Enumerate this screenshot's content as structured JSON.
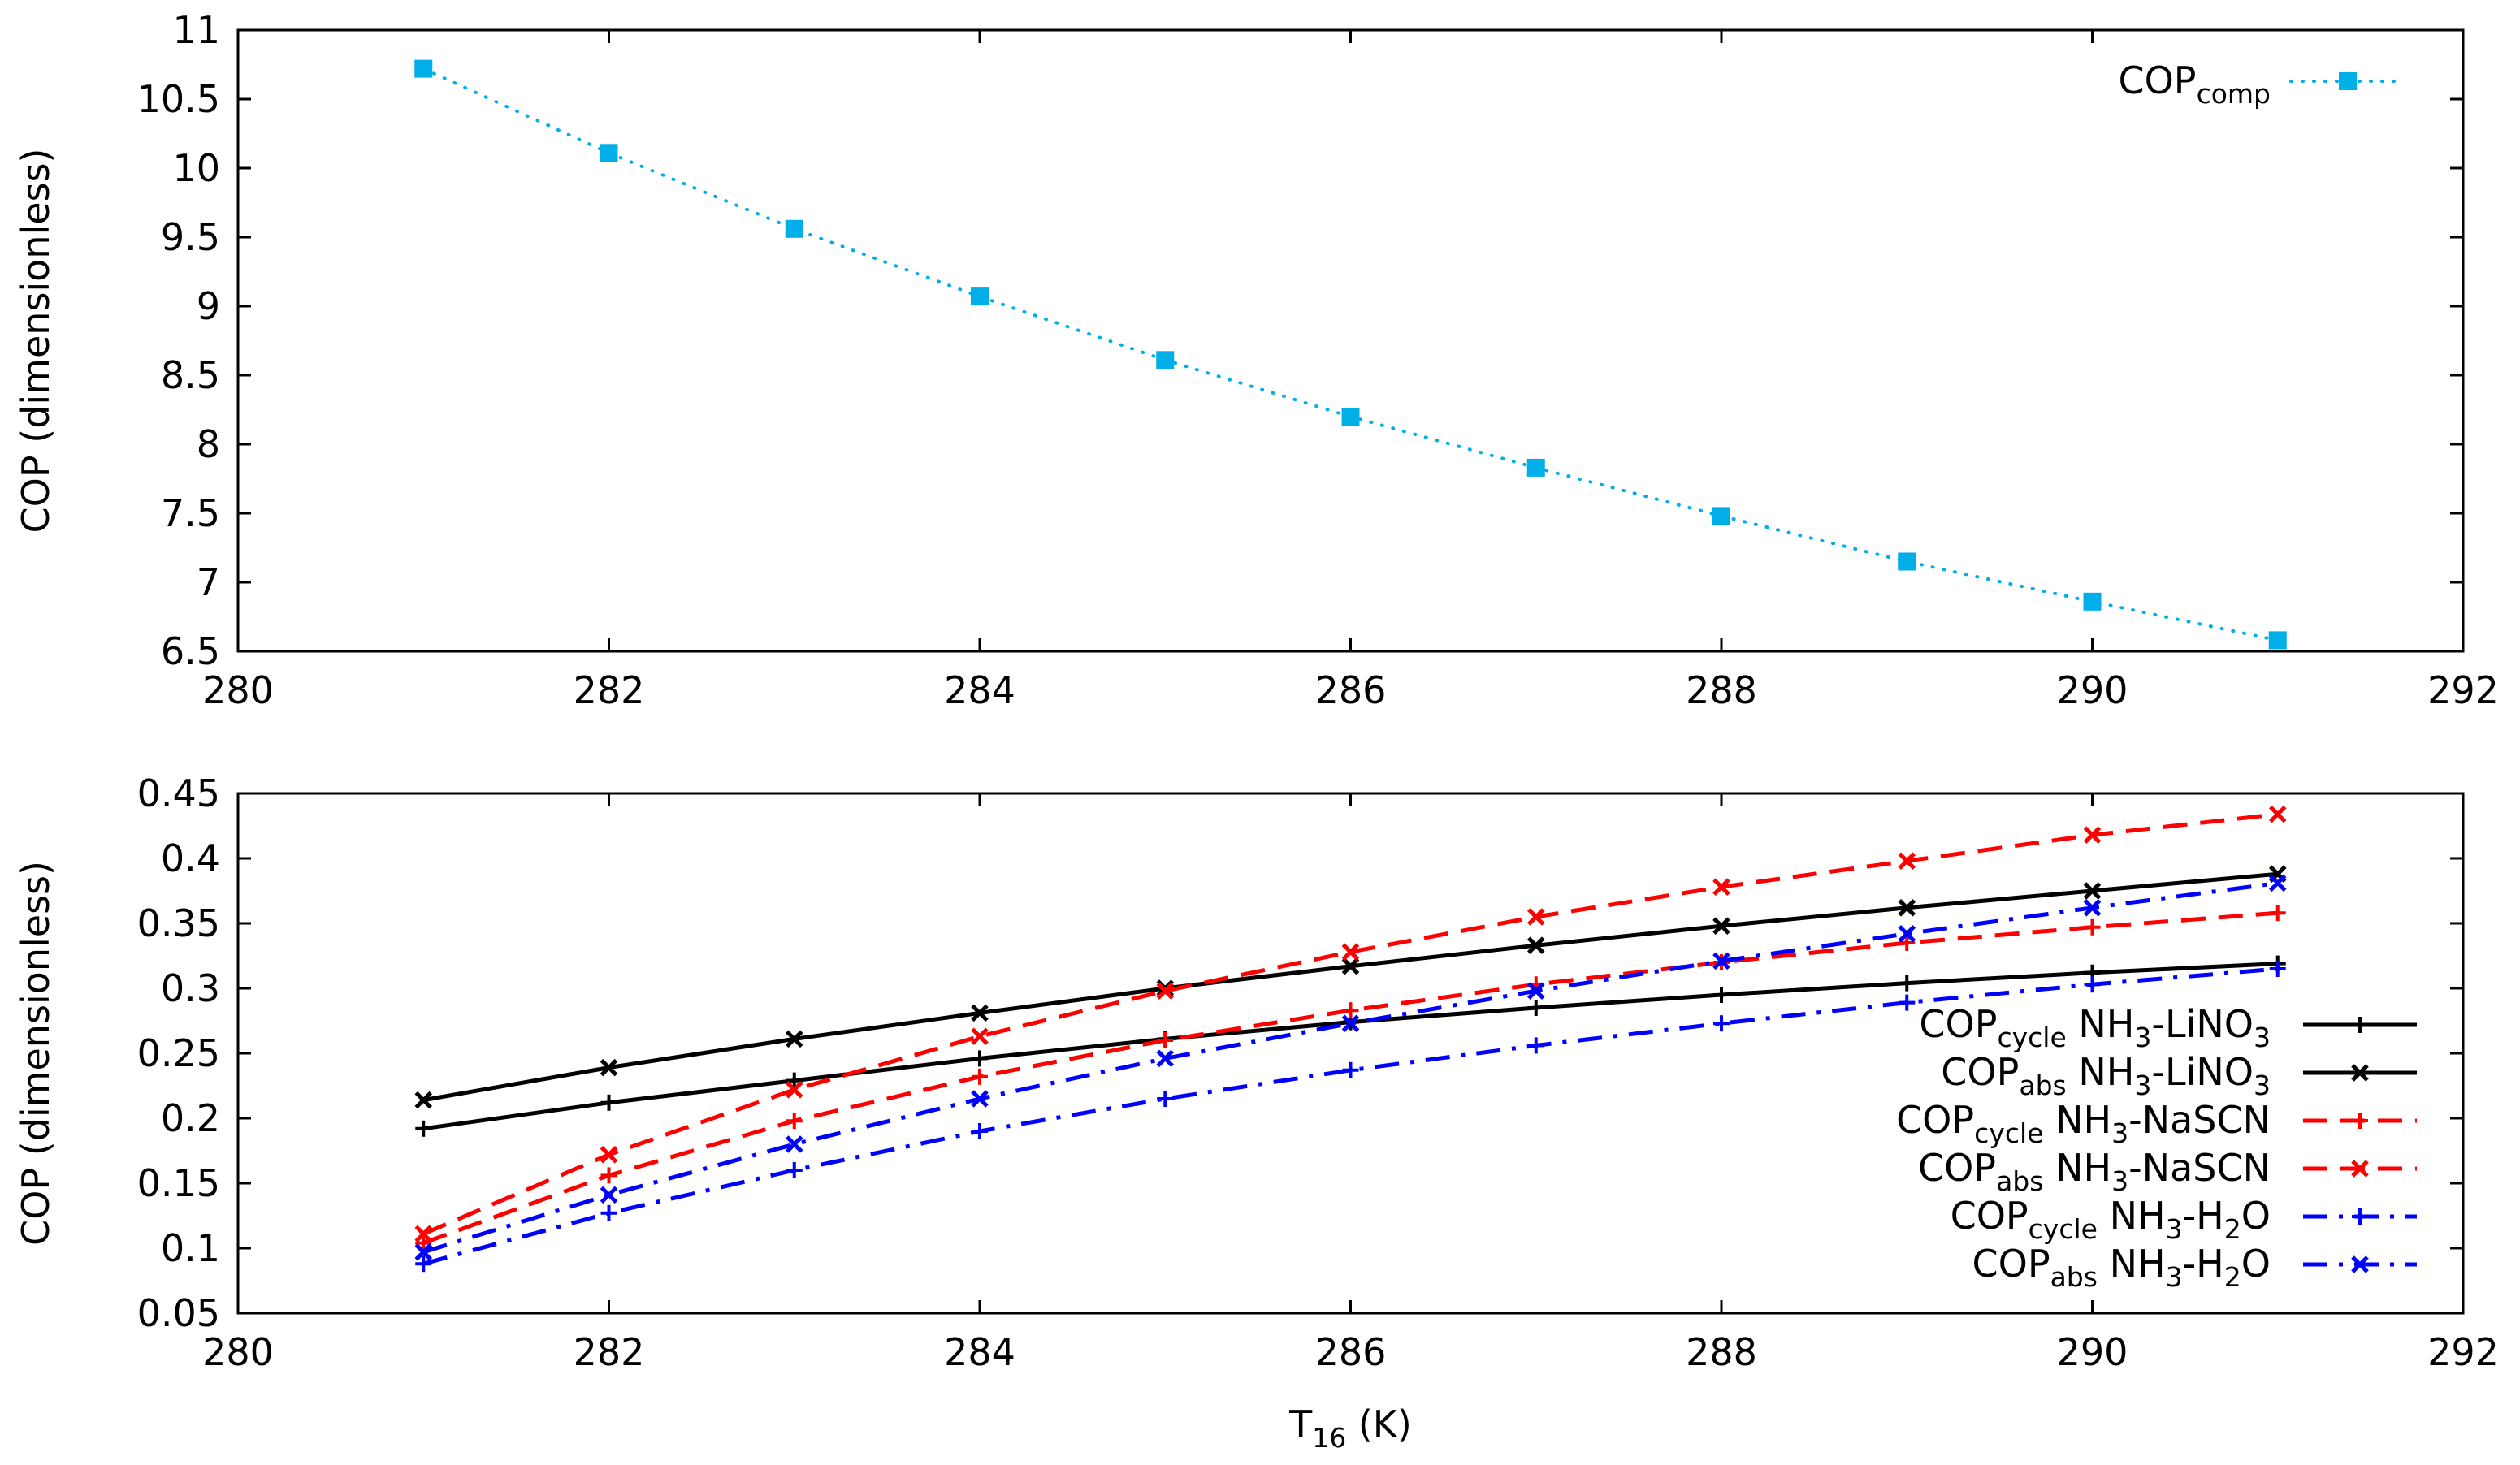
{
  "chart_data": [
    {
      "type": "line",
      "title": "",
      "xlabel": "",
      "ylabel": "COP (dimensionless)",
      "xlim": [
        280,
        292
      ],
      "ylim": [
        6.5,
        11
      ],
      "xticks": [
        280,
        282,
        284,
        286,
        288,
        290,
        292
      ],
      "xtick_labels": [
        "280",
        "282",
        "284",
        "286",
        "288",
        "290",
        "292"
      ],
      "yticks": [
        6.5,
        7,
        7.5,
        8,
        8.5,
        9,
        9.5,
        10,
        10.5,
        11
      ],
      "ytick_labels": [
        "6.5",
        "7",
        "7.5",
        "8",
        "8.5",
        "9",
        "9.5",
        "10",
        "10.5",
        "11"
      ],
      "grid": false,
      "legend_position": "top-right",
      "series": [
        {
          "name": "COP_comp",
          "label_main": "COP",
          "label_sub": "comp",
          "label_rest": "",
          "color": "#00aee8",
          "dash": "dotted",
          "marker": "square",
          "x": [
            281,
            282,
            283,
            284,
            285,
            286,
            287,
            288,
            289,
            290,
            291
          ],
          "values": [
            10.72,
            10.11,
            9.56,
            9.07,
            8.61,
            8.2,
            7.83,
            7.48,
            7.15,
            6.86,
            6.58
          ]
        }
      ]
    },
    {
      "type": "line",
      "title": "",
      "xlabel": "T16 (K)",
      "xlabel_main": "T",
      "xlabel_sub": "16",
      "xlabel_rest": " (K)",
      "ylabel": "COP (dimensionless)",
      "xlim": [
        280,
        292
      ],
      "ylim": [
        0.05,
        0.45
      ],
      "xticks": [
        280,
        282,
        284,
        286,
        288,
        290,
        292
      ],
      "xtick_labels": [
        "280",
        "282",
        "284",
        "286",
        "288",
        "290",
        "292"
      ],
      "yticks": [
        0.05,
        0.1,
        0.15,
        0.2,
        0.25,
        0.3,
        0.35,
        0.4,
        0.45
      ],
      "ytick_labels": [
        "0.05",
        "0.1",
        "0.15",
        "0.2",
        "0.25",
        "0.3",
        "0.35",
        "0.4",
        "0.45"
      ],
      "grid": false,
      "legend_position": "bottom-right",
      "series": [
        {
          "name": "COP_cycle NH3-LiNO3",
          "label_main": "COP",
          "label_sub": "cycle",
          "label_rest": " NH3-LiNO3",
          "color": "#000000",
          "dash": "solid",
          "marker": "plus",
          "x": [
            281,
            282,
            283,
            284,
            285,
            286,
            287,
            288,
            289,
            290,
            291
          ],
          "values": [
            0.192,
            0.212,
            0.229,
            0.246,
            0.261,
            0.274,
            0.285,
            0.295,
            0.304,
            0.312,
            0.319
          ]
        },
        {
          "name": "COP_abs NH3-LiNO3",
          "label_main": "COP",
          "label_sub": "abs",
          "label_rest": " NH3-LiNO3",
          "color": "#000000",
          "dash": "solid",
          "marker": "cross",
          "x": [
            281,
            282,
            283,
            284,
            285,
            286,
            287,
            288,
            289,
            290,
            291
          ],
          "values": [
            0.214,
            0.239,
            0.261,
            0.281,
            0.3,
            0.317,
            0.333,
            0.348,
            0.362,
            0.375,
            0.388
          ]
        },
        {
          "name": "COP_cycle NH3-NaSCN",
          "label_main": "COP",
          "label_sub": "cycle",
          "label_rest": " NH3-NaSCN",
          "color": "#ff0000",
          "dash": "dashed",
          "marker": "plus",
          "x": [
            281,
            282,
            283,
            284,
            285,
            286,
            287,
            288,
            289,
            290,
            291
          ],
          "values": [
            0.104,
            0.156,
            0.198,
            0.232,
            0.26,
            0.283,
            0.303,
            0.32,
            0.335,
            0.347,
            0.358
          ]
        },
        {
          "name": "COP_abs NH3-NaSCN",
          "label_main": "COP",
          "label_sub": "abs",
          "label_rest": " NH3-NaSCN",
          "color": "#ff0000",
          "dash": "dashed",
          "marker": "cross",
          "x": [
            281,
            282,
            283,
            284,
            285,
            286,
            287,
            288,
            289,
            290,
            291
          ],
          "values": [
            0.111,
            0.172,
            0.222,
            0.263,
            0.298,
            0.328,
            0.355,
            0.378,
            0.398,
            0.418,
            0.434
          ]
        },
        {
          "name": "COP_cycle NH3-H2O",
          "label_main": "COP",
          "label_sub": "cycle",
          "label_rest": " NH3-H2O",
          "color": "#0000ff",
          "dash": "dashdot",
          "marker": "plus",
          "x": [
            281,
            282,
            283,
            284,
            285,
            286,
            287,
            288,
            289,
            290,
            291
          ],
          "values": [
            0.088,
            0.127,
            0.16,
            0.19,
            0.215,
            0.237,
            0.256,
            0.273,
            0.289,
            0.303,
            0.315
          ]
        },
        {
          "name": "COP_abs NH3-H2O",
          "label_main": "COP",
          "label_sub": "abs",
          "label_rest": " NH3-H2O",
          "color": "#0000ff",
          "dash": "dashdot",
          "marker": "cross",
          "x": [
            281,
            282,
            283,
            284,
            285,
            286,
            287,
            288,
            289,
            290,
            291
          ],
          "values": [
            0.097,
            0.141,
            0.18,
            0.215,
            0.246,
            0.273,
            0.298,
            0.321,
            0.342,
            0.362,
            0.381
          ]
        }
      ]
    }
  ]
}
